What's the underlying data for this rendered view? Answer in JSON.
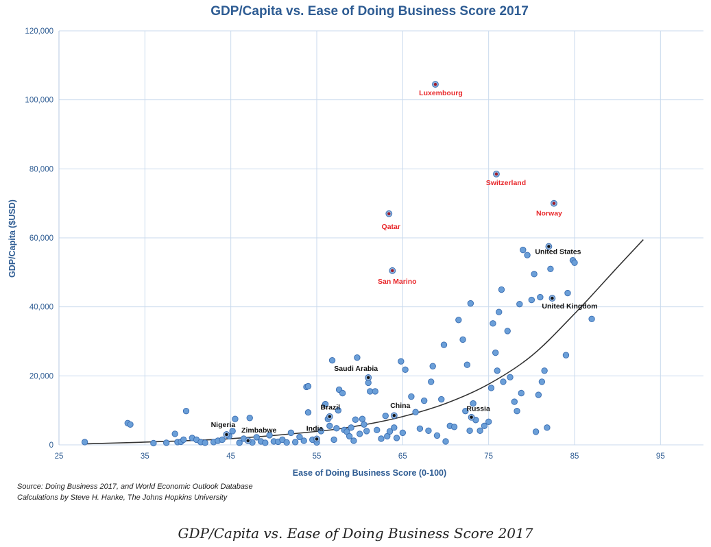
{
  "caption": "GDP/Capita vs. Ease of Doing Business Score 2017",
  "source_lines": [
    "Source: Doing Business 2017, and World Economic Outlook Database",
    "Calculations by Steve H. Hanke, The Johns Hopkins University"
  ],
  "colors": {
    "point": "#6b9fd8",
    "highlight_red": "#e8272a",
    "highlight_black": "#111111",
    "trend": "#8eb2d8",
    "axis_text": "#2e5c93"
  },
  "chart_data": {
    "type": "scatter",
    "title": "GDP/Capita vs. Ease of Doing Business Score 2017",
    "xlabel": "Ease of Doing Business Score (0-100)",
    "ylabel": "GDP/Capita ($USD)",
    "xlim": [
      25,
      100
    ],
    "ylim": [
      0,
      120000
    ],
    "xticks": [
      25,
      35,
      45,
      55,
      65,
      75,
      85,
      95
    ],
    "yticks": [
      0,
      20000,
      40000,
      60000,
      80000,
      100000,
      120000
    ],
    "ytick_labels": [
      "0",
      "20,000",
      "40,000",
      "60,000",
      "80,000",
      "100,000",
      "120,000"
    ],
    "grid": true,
    "labeled_points": [
      {
        "label": "Luxembourg",
        "x": 68.8,
        "y": 104500,
        "color": "red"
      },
      {
        "label": "Switzerland",
        "x": 75.9,
        "y": 78500,
        "color": "red"
      },
      {
        "label": "Norway",
        "x": 82.6,
        "y": 70000,
        "color": "red"
      },
      {
        "label": "Qatar",
        "x": 63.4,
        "y": 67000,
        "color": "red"
      },
      {
        "label": "San Marino",
        "x": 63.8,
        "y": 50500,
        "color": "red"
      },
      {
        "label": "United States",
        "x": 82.0,
        "y": 57500,
        "color": "black"
      },
      {
        "label": "United Kingdom",
        "x": 82.4,
        "y": 42500,
        "color": "black"
      },
      {
        "label": "Saudi Arabia",
        "x": 61.0,
        "y": 19500,
        "color": "black"
      },
      {
        "label": "China",
        "x": 64.0,
        "y": 8500,
        "color": "black"
      },
      {
        "label": "Brazil",
        "x": 56.5,
        "y": 8200,
        "color": "black"
      },
      {
        "label": "Russia",
        "x": 73.0,
        "y": 8000,
        "color": "black"
      },
      {
        "label": "Nigeria",
        "x": 44.5,
        "y": 3000,
        "color": "black"
      },
      {
        "label": "Zimbabwe",
        "x": 47.0,
        "y": 1200,
        "color": "black"
      },
      {
        "label": "India",
        "x": 55.0,
        "y": 1700,
        "color": "black"
      }
    ],
    "points": [
      [
        28,
        800
      ],
      [
        33,
        6300
      ],
      [
        33.3,
        5900
      ],
      [
        36,
        500
      ],
      [
        37.5,
        600
      ],
      [
        38.5,
        3200
      ],
      [
        38.8,
        800
      ],
      [
        39.2,
        900
      ],
      [
        39.5,
        1500
      ],
      [
        39.8,
        9800
      ],
      [
        40.5,
        2000
      ],
      [
        41,
        1500
      ],
      [
        41.5,
        800
      ],
      [
        42,
        600
      ],
      [
        43,
        800
      ],
      [
        43.5,
        1200
      ],
      [
        44,
        1500
      ],
      [
        44.8,
        2500
      ],
      [
        45.2,
        4000
      ],
      [
        45.5,
        7500
      ],
      [
        46,
        600
      ],
      [
        46.5,
        1800
      ],
      [
        47.2,
        7800
      ],
      [
        47.5,
        700
      ],
      [
        48,
        2200
      ],
      [
        48.5,
        1000
      ],
      [
        49,
        600
      ],
      [
        49.5,
        2800
      ],
      [
        50,
        1000
      ],
      [
        50.5,
        900
      ],
      [
        51,
        1500
      ],
      [
        51.5,
        700
      ],
      [
        52,
        3500
      ],
      [
        52.5,
        800
      ],
      [
        53,
        2300
      ],
      [
        53.5,
        1200
      ],
      [
        53.8,
        16800
      ],
      [
        54,
        9400
      ],
      [
        54,
        17000
      ],
      [
        54.5,
        1500
      ],
      [
        55,
        700
      ],
      [
        55.5,
        4000
      ],
      [
        56,
        11800
      ],
      [
        56.3,
        7500
      ],
      [
        56.5,
        5500
      ],
      [
        56.8,
        24500
      ],
      [
        57,
        1500
      ],
      [
        57.3,
        4800
      ],
      [
        57.5,
        10000
      ],
      [
        57.6,
        16000
      ],
      [
        58,
        15000
      ],
      [
        58.2,
        4300
      ],
      [
        58.5,
        3800
      ],
      [
        58.8,
        2500
      ],
      [
        59,
        5000
      ],
      [
        59.3,
        1200
      ],
      [
        59.5,
        7300
      ],
      [
        59.7,
        25300
      ],
      [
        60,
        3200
      ],
      [
        60.3,
        7500
      ],
      [
        60.5,
        5900
      ],
      [
        60.8,
        4000
      ],
      [
        61,
        18000
      ],
      [
        61.2,
        15500
      ],
      [
        61.8,
        15500
      ],
      [
        62,
        4300
      ],
      [
        62.5,
        1800
      ],
      [
        63,
        8400
      ],
      [
        63.2,
        2500
      ],
      [
        63.5,
        3900
      ],
      [
        64,
        5000
      ],
      [
        64.3,
        2000
      ],
      [
        64.8,
        24200
      ],
      [
        65,
        3500
      ],
      [
        65.3,
        21800
      ],
      [
        66,
        14000
      ],
      [
        66.5,
        9500
      ],
      [
        67,
        4700
      ],
      [
        67.5,
        12800
      ],
      [
        68,
        4100
      ],
      [
        68.3,
        18300
      ],
      [
        68.5,
        22800
      ],
      [
        69,
        2700
      ],
      [
        69.5,
        13200
      ],
      [
        69.8,
        29000
      ],
      [
        70,
        1000
      ],
      [
        70.5,
        5500
      ],
      [
        71,
        5200
      ],
      [
        71.5,
        36200
      ],
      [
        72,
        30500
      ],
      [
        72.3,
        9800
      ],
      [
        72.5,
        23200
      ],
      [
        72.8,
        4100
      ],
      [
        72.9,
        41000
      ],
      [
        73.2,
        12000
      ],
      [
        73.5,
        7200
      ],
      [
        74,
        4100
      ],
      [
        74.5,
        5500
      ],
      [
        75,
        6700
      ],
      [
        75.3,
        16500
      ],
      [
        75.5,
        35200
      ],
      [
        75.8,
        26700
      ],
      [
        76,
        21500
      ],
      [
        76.2,
        38500
      ],
      [
        76.5,
        45000
      ],
      [
        76.7,
        18300
      ],
      [
        77.2,
        33000
      ],
      [
        77.5,
        19600
      ],
      [
        78,
        12500
      ],
      [
        78.3,
        9800
      ],
      [
        78.6,
        40800
      ],
      [
        78.8,
        15000
      ],
      [
        79,
        56500
      ],
      [
        79.5,
        55000
      ],
      [
        80,
        42000
      ],
      [
        80.3,
        49500
      ],
      [
        80.5,
        3800
      ],
      [
        80.8,
        14500
      ],
      [
        81,
        42800
      ],
      [
        81.2,
        18300
      ],
      [
        81.5,
        21500
      ],
      [
        81.8,
        5000
      ],
      [
        82.2,
        51000
      ],
      [
        84,
        26000
      ],
      [
        84.2,
        44000
      ],
      [
        84.8,
        53500
      ],
      [
        85,
        52800
      ],
      [
        87,
        36500
      ]
    ],
    "trendline": [
      [
        28,
        300
      ],
      [
        35,
        800
      ],
      [
        45,
        1800
      ],
      [
        55,
        3900
      ],
      [
        60,
        5600
      ],
      [
        65,
        8200
      ],
      [
        70,
        12000
      ],
      [
        75,
        17600
      ],
      [
        80,
        25800
      ],
      [
        85,
        38000
      ],
      [
        90,
        51500
      ],
      [
        93,
        59500
      ]
    ]
  }
}
